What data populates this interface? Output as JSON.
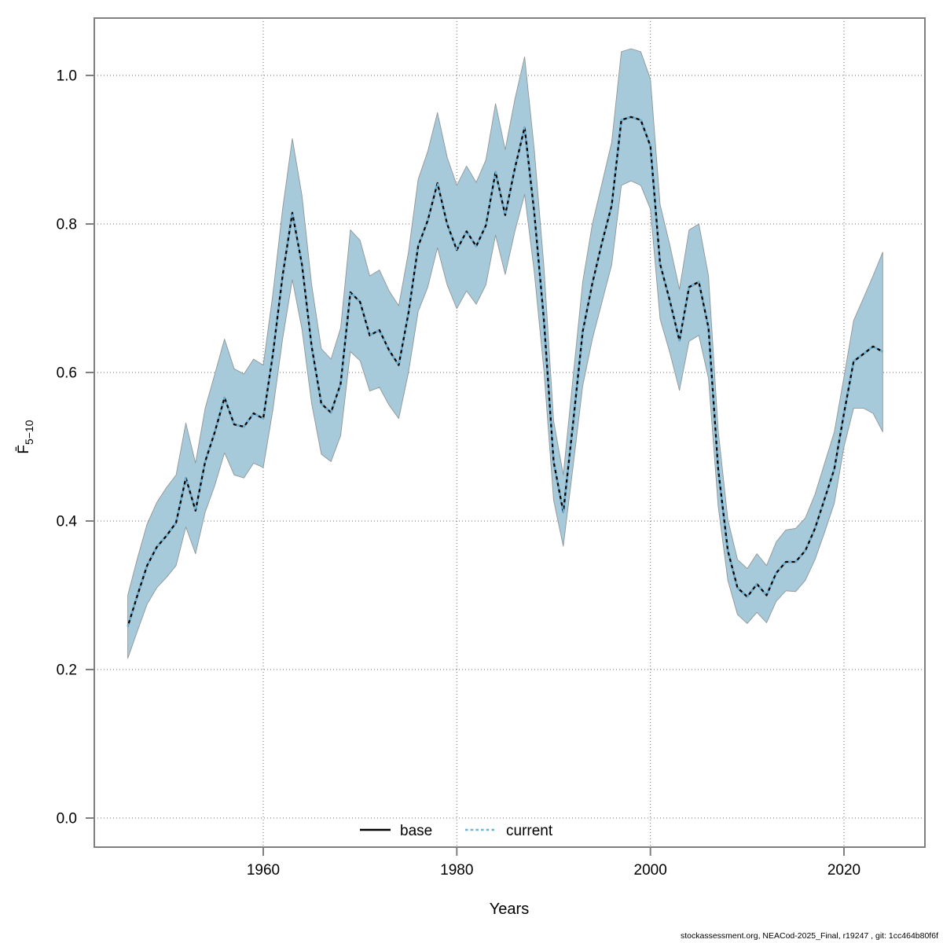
{
  "footer": {
    "text": "stockassessment.org, NEACod-2025_Final, r19247 , git: 1cc464b80f6f"
  },
  "legend": {
    "base_label": "base",
    "current_label": "current"
  },
  "axes": {
    "x_label": "Years",
    "y_label_main": "F̄",
    "y_label_sub": "5−10"
  },
  "colors": {
    "band_fill": "#a7cada",
    "band_edge": "#8f9698",
    "base_line": "#000000",
    "current_line": "#6fb3d6",
    "grid": "#6b6b6b",
    "frame": "#7f7f7f",
    "text": "#000000"
  },
  "chart_data": {
    "type": "line",
    "title": "",
    "xlabel": "Years",
    "ylabel": "F̄ 5−10",
    "x_ticks": [
      1960,
      1980,
      2000,
      2020
    ],
    "y_ticks": [
      "0.0",
      "0.2",
      "0.4",
      "0.6",
      "0.8",
      "1.0"
    ],
    "xlim": [
      1942.5,
      2028.4
    ],
    "ylim": [
      -0.04,
      1.08
    ],
    "grid": true,
    "legend_position": "bottom-center",
    "categories_note": "annual values read from plot",
    "years": [
      1946,
      1947,
      1948,
      1949,
      1950,
      1951,
      1952,
      1953,
      1954,
      1955,
      1956,
      1957,
      1958,
      1959,
      1960,
      1961,
      1962,
      1963,
      1964,
      1965,
      1966,
      1967,
      1968,
      1969,
      1970,
      1971,
      1972,
      1973,
      1974,
      1975,
      1976,
      1977,
      1978,
      1979,
      1980,
      1981,
      1982,
      1983,
      1984,
      1985,
      1986,
      1987,
      1988,
      1989,
      1990,
      1991,
      1992,
      1993,
      1994,
      1995,
      1996,
      1997,
      1998,
      1999,
      2000,
      2001,
      2002,
      2003,
      2004,
      2005,
      2006,
      2007,
      2008,
      2009,
      2010,
      2011,
      2012,
      2013,
      2014,
      2015,
      2016,
      2017,
      2018,
      2019,
      2020,
      2021,
      2022,
      2023,
      2024
    ],
    "series": [
      {
        "name": "base",
        "style": "solid-black",
        "values": [
          0.258,
          0.3,
          0.34,
          0.365,
          0.38,
          0.398,
          0.458,
          0.414,
          0.48,
          0.52,
          0.566,
          0.53,
          0.527,
          0.545,
          0.538,
          0.625,
          0.73,
          0.815,
          0.745,
          0.635,
          0.558,
          0.546,
          0.585,
          0.708,
          0.695,
          0.65,
          0.657,
          0.63,
          0.61,
          0.68,
          0.77,
          0.805,
          0.855,
          0.8,
          0.765,
          0.79,
          0.77,
          0.798,
          0.87,
          0.812,
          0.875,
          0.93,
          0.815,
          0.67,
          0.48,
          0.412,
          0.53,
          0.655,
          0.72,
          0.775,
          0.825,
          0.94,
          0.944,
          0.94,
          0.905,
          0.746,
          0.697,
          0.643,
          0.715,
          0.722,
          0.66,
          0.47,
          0.36,
          0.31,
          0.298,
          0.315,
          0.3,
          0.33,
          0.345,
          0.345,
          0.36,
          0.39,
          0.43,
          0.47,
          0.545,
          0.615,
          0.625,
          0.635,
          0.628
        ]
      },
      {
        "name": "current",
        "style": "dashed-blue-over-black",
        "values": [
          0.258,
          0.3,
          0.34,
          0.365,
          0.38,
          0.398,
          0.458,
          0.414,
          0.48,
          0.52,
          0.566,
          0.53,
          0.527,
          0.545,
          0.538,
          0.625,
          0.73,
          0.815,
          0.745,
          0.635,
          0.558,
          0.546,
          0.585,
          0.708,
          0.695,
          0.65,
          0.657,
          0.63,
          0.61,
          0.68,
          0.77,
          0.805,
          0.855,
          0.8,
          0.765,
          0.79,
          0.77,
          0.798,
          0.87,
          0.812,
          0.875,
          0.93,
          0.815,
          0.67,
          0.48,
          0.412,
          0.53,
          0.655,
          0.72,
          0.775,
          0.825,
          0.94,
          0.944,
          0.94,
          0.905,
          0.746,
          0.697,
          0.643,
          0.715,
          0.722,
          0.66,
          0.47,
          0.36,
          0.31,
          0.298,
          0.315,
          0.3,
          0.33,
          0.345,
          0.345,
          0.36,
          0.39,
          0.43,
          0.47,
          0.545,
          0.615,
          0.625,
          0.635,
          0.628
        ],
        "ci_low": [
          0.215,
          0.252,
          0.288,
          0.31,
          0.324,
          0.34,
          0.392,
          0.356,
          0.412,
          0.448,
          0.492,
          0.462,
          0.458,
          0.478,
          0.472,
          0.55,
          0.645,
          0.725,
          0.658,
          0.558,
          0.49,
          0.48,
          0.515,
          0.628,
          0.616,
          0.575,
          0.58,
          0.556,
          0.538,
          0.6,
          0.682,
          0.715,
          0.768,
          0.718,
          0.686,
          0.71,
          0.692,
          0.718,
          0.785,
          0.732,
          0.79,
          0.84,
          0.735,
          0.602,
          0.428,
          0.366,
          0.472,
          0.582,
          0.645,
          0.695,
          0.745,
          0.852,
          0.858,
          0.852,
          0.82,
          0.672,
          0.627,
          0.576,
          0.642,
          0.65,
          0.592,
          0.42,
          0.32,
          0.274,
          0.262,
          0.277,
          0.263,
          0.292,
          0.306,
          0.305,
          0.32,
          0.348,
          0.385,
          0.424,
          0.5,
          0.552,
          0.552,
          0.545,
          0.52
        ],
        "ci_high": [
          0.3,
          0.35,
          0.396,
          0.425,
          0.445,
          0.462,
          0.532,
          0.478,
          0.552,
          0.598,
          0.645,
          0.605,
          0.598,
          0.618,
          0.61,
          0.706,
          0.82,
          0.915,
          0.838,
          0.718,
          0.632,
          0.618,
          0.66,
          0.792,
          0.778,
          0.73,
          0.738,
          0.71,
          0.69,
          0.762,
          0.86,
          0.898,
          0.95,
          0.89,
          0.852,
          0.878,
          0.856,
          0.886,
          0.962,
          0.9,
          0.968,
          1.025,
          0.9,
          0.742,
          0.535,
          0.462,
          0.592,
          0.722,
          0.8,
          0.855,
          0.91,
          1.032,
          1.036,
          1.032,
          0.995,
          0.826,
          0.772,
          0.712,
          0.792,
          0.8,
          0.73,
          0.522,
          0.402,
          0.348,
          0.336,
          0.356,
          0.34,
          0.372,
          0.388,
          0.39,
          0.404,
          0.436,
          0.478,
          0.52,
          0.594,
          0.67,
          0.7,
          0.73,
          0.762
        ]
      }
    ]
  }
}
